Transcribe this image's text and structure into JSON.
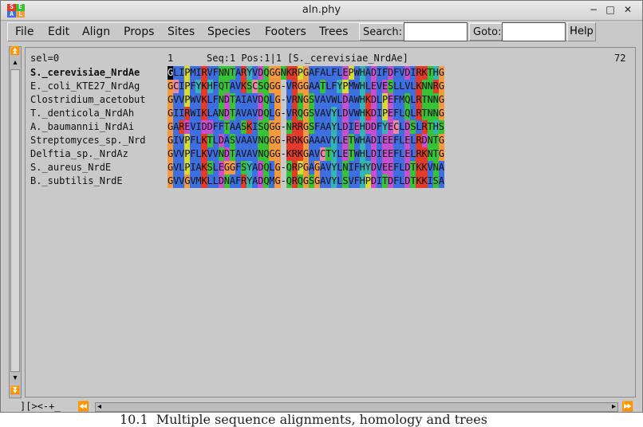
{
  "window": {
    "title": "aln.phy",
    "icon_letters": [
      "S",
      "E",
      "A",
      "L"
    ]
  },
  "menubar": {
    "items": [
      "File",
      "Edit",
      "Align",
      "Props",
      "Sites",
      "Species",
      "Footers",
      "Trees"
    ],
    "search_label": "Search:",
    "search_value": "",
    "goto_label": "Goto:",
    "goto_value": "",
    "help_label": "Help"
  },
  "status": {
    "sel": "sel=0",
    "pos_start": "1",
    "position": "Seq:1 Pos:1|1 [S._cerevisiae_NrdAe]",
    "length": "72"
  },
  "sequences": [
    {
      "name": "S._cerevisiae_NrdAe",
      "seq": "GLIPMIRVFNNTARYVDQGGNKRPGAFALFLEPWHADIFDFVDIRKTHG"
    },
    {
      "name": "E._coli_KTE27_NrdAg",
      "seq": "GCIPFYKHFQTAVKSCSQGG-VRGGAATLFYPMWHLEVESLLVLKNNRG"
    },
    {
      "name": "Clostridium_acetobut",
      "seq": "GVVPWVKLFNDTAIAVDQLG-VRNGSVAVWLDAWHKDLPEFMQLRTNNG"
    },
    {
      "name": "T._denticola_NrdAh",
      "seq": "GIIRWIKLANDTAVAVDQLG-VRQGSVAVYLDVWHKDIPEFLQLRTNNG"
    },
    {
      "name": "A._baumannii_NrdAi",
      "seq": "GAREVIDDFFTAASKISQGG-NRRGSFAAYLDIEHDDFYECLDSLRTHS"
    },
    {
      "name": "Streptomyces_sp._Nrd",
      "seq": "GIVPFLKTLDASVAAVNQGG-RRKGAAAVYLETWHADIEEFLELRDNTG"
    },
    {
      "name": "Delftia_sp._NrdAz",
      "seq": "GVVPFLKVVNDTAVAVNQGG-KRKGAVCTYLETWHLDIEEFLELRKNTG"
    },
    {
      "name": "S._aureus_NrdE",
      "seq": "GVLPIAKSLEGGFSYADQLG-QRPGAGAVYLNIFHYDVEEFLDTKKVNA"
    },
    {
      "name": "B._subtilis_NrdE",
      "seq": "GVVGVMKLLDNAFRYADQMG-QRQGSGAVYLSVFHPDITDFLDTKKISA"
    }
  ],
  "colors": {
    "A": "#3d6fe0",
    "V": "#3d6fe0",
    "L": "#3d6fe0",
    "I": "#3d6fe0",
    "M": "#3d6fe0",
    "F": "#3d6fe0",
    "W": "#3d6fe0",
    "C": "#e88aa8",
    "K": "#e23b2b",
    "R": "#e23b2b",
    "E": "#c94fd0",
    "D": "#c94fd0",
    "N": "#36c436",
    "Q": "#36c436",
    "S": "#36c436",
    "T": "#36c436",
    "G": "#f39a3c",
    "P": "#d9d92e",
    "H": "#33b5b5",
    "Y": "#33b5b5",
    "-": "#c9c9c9",
    "cursor": "#000000"
  },
  "bottom": {
    "scroll_label": "][><-+_"
  },
  "below_text": "10.1  Multiple sequence alignments, homology and trees"
}
